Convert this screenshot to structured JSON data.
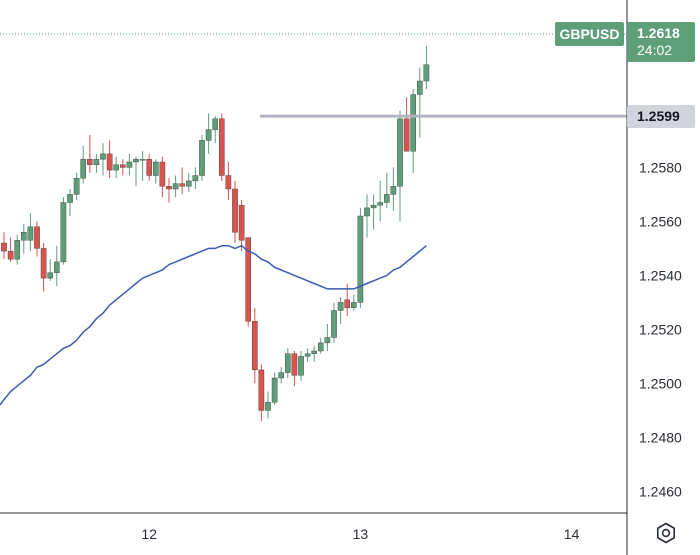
{
  "chart_data": {
    "type": "candlestick",
    "symbol": "GBPUSD",
    "last_price": "1.2618",
    "countdown": "24:02",
    "level_line": {
      "value": 1.2599,
      "label": "1.2599"
    },
    "ylim": [
      1.2452,
      1.2642
    ],
    "y_ticks": [
      "1.2460",
      "1.2480",
      "1.2500",
      "1.2520",
      "1.2540",
      "1.2560",
      "1.2580"
    ],
    "x_ticks": [
      {
        "label": "12",
        "index": 22
      },
      {
        "label": "13",
        "index": 54
      },
      {
        "label": "14",
        "index": 86
      }
    ],
    "colors": {
      "up": "#5e9f79",
      "down": "#d9534f",
      "ma": "#3b5bb5",
      "level": "#b2b5be",
      "last": "#5e9f79"
    },
    "candles": [
      [
        1.2552,
        1.2556,
        1.2546,
        1.2549
      ],
      [
        1.2549,
        1.2554,
        1.2545,
        1.2546
      ],
      [
        1.2546,
        1.2555,
        1.2544,
        1.2553
      ],
      [
        1.2553,
        1.2559,
        1.2548,
        1.2556
      ],
      [
        1.2553,
        1.2563,
        1.2549,
        1.2558
      ],
      [
        1.2558,
        1.256,
        1.2547,
        1.255
      ],
      [
        1.255,
        1.2552,
        1.2534,
        1.2539
      ],
      [
        1.2539,
        1.2546,
        1.2538,
        1.2541
      ],
      [
        1.2541,
        1.2551,
        1.2536,
        1.2545
      ],
      [
        1.2545,
        1.2569,
        1.2544,
        1.2567
      ],
      [
        1.2567,
        1.2572,
        1.2562,
        1.257
      ],
      [
        1.257,
        1.2578,
        1.2568,
        1.2576
      ],
      [
        1.2576,
        1.2588,
        1.2574,
        1.2583
      ],
      [
        1.2583,
        1.2592,
        1.2578,
        1.2581
      ],
      [
        1.2581,
        1.2585,
        1.2578,
        1.2583
      ],
      [
        1.2583,
        1.2589,
        1.2577,
        1.2585
      ],
      [
        1.2585,
        1.259,
        1.2576,
        1.2579
      ],
      [
        1.2579,
        1.2584,
        1.2576,
        1.2581
      ],
      [
        1.2581,
        1.2583,
        1.2577,
        1.258
      ],
      [
        1.258,
        1.2585,
        1.2577,
        1.2582
      ],
      [
        1.2582,
        1.2584,
        1.2573,
        1.2583
      ],
      [
        1.2583,
        1.2586,
        1.2575,
        1.2583
      ],
      [
        1.2583,
        1.2585,
        1.2575,
        1.2577
      ],
      [
        1.2577,
        1.2583,
        1.2574,
        1.2582
      ],
      [
        1.2582,
        1.2584,
        1.2569,
        1.2573
      ],
      [
        1.2573,
        1.2576,
        1.2567,
        1.2572
      ],
      [
        1.2572,
        1.2577,
        1.2569,
        1.2574
      ],
      [
        1.2574,
        1.258,
        1.257,
        1.2573
      ],
      [
        1.2573,
        1.2578,
        1.2571,
        1.2575
      ],
      [
        1.2575,
        1.258,
        1.2572,
        1.2577
      ],
      [
        1.2577,
        1.2592,
        1.2575,
        1.259
      ],
      [
        1.259,
        1.26,
        1.2585,
        1.2594
      ],
      [
        1.2594,
        1.2599,
        1.2589,
        1.2598
      ],
      [
        1.2598,
        1.26,
        1.2575,
        1.2577
      ],
      [
        1.2577,
        1.2582,
        1.2568,
        1.2572
      ],
      [
        1.2572,
        1.2575,
        1.2552,
        1.2556
      ],
      [
        1.2566,
        1.2568,
        1.2549,
        1.2553
      ],
      [
        1.2554,
        1.2554,
        1.2521,
        1.2523
      ],
      [
        1.2523,
        1.2528,
        1.25,
        1.2505
      ],
      [
        1.2505,
        1.2507,
        1.2486,
        1.249
      ],
      [
        1.249,
        1.2497,
        1.2487,
        1.2493
      ],
      [
        1.2493,
        1.2504,
        1.2492,
        1.2502
      ],
      [
        1.2502,
        1.2506,
        1.25,
        1.2504
      ],
      [
        1.2504,
        1.2513,
        1.2502,
        1.2511
      ],
      [
        1.2511,
        1.2512,
        1.2499,
        1.2503
      ],
      [
        1.2503,
        1.2512,
        1.2501,
        1.251
      ],
      [
        1.251,
        1.2513,
        1.2508,
        1.2511
      ],
      [
        1.2511,
        1.2514,
        1.2508,
        1.2512
      ],
      [
        1.2512,
        1.2517,
        1.2511,
        1.2515
      ],
      [
        1.2515,
        1.2522,
        1.2512,
        1.2517
      ],
      [
        1.2517,
        1.253,
        1.2515,
        1.2527
      ],
      [
        1.2527,
        1.2532,
        1.2522,
        1.253
      ],
      [
        1.2531,
        1.2537,
        1.2525,
        1.2528
      ],
      [
        1.2528,
        1.2533,
        1.2527,
        1.253
      ],
      [
        1.253,
        1.2565,
        1.2528,
        1.2562
      ],
      [
        1.2562,
        1.257,
        1.2554,
        1.2565
      ],
      [
        1.2565,
        1.257,
        1.2557,
        1.2566
      ],
      [
        1.2566,
        1.2575,
        1.256,
        1.2567
      ],
      [
        1.2567,
        1.2578,
        1.2565,
        1.257
      ],
      [
        1.257,
        1.258,
        1.2564,
        1.2573
      ],
      [
        1.2573,
        1.2601,
        1.256,
        1.2598
      ],
      [
        1.2598,
        1.2606,
        1.2586,
        1.2586
      ],
      [
        1.2586,
        1.2609,
        1.2578,
        1.2607
      ],
      [
        1.2607,
        1.2617,
        1.2591,
        1.2612
      ],
      [
        1.2612,
        1.2625,
        1.2609,
        1.2618
      ]
    ],
    "ma": [
      1.2494,
      1.2497,
      1.2499,
      1.2501,
      1.2503,
      1.2506,
      1.2507,
      1.2509,
      1.2511,
      1.2513,
      1.2514,
      1.2516,
      1.2519,
      1.2521,
      1.2524,
      1.2526,
      1.2529,
      1.2531,
      1.2533,
      1.2535,
      1.2537,
      1.2539,
      1.254,
      1.2541,
      1.2542,
      1.2544,
      1.2545,
      1.2546,
      1.2547,
      1.2548,
      1.2549,
      1.255,
      1.255,
      1.2551,
      1.2551,
      1.255,
      1.2551,
      1.2549,
      1.2548,
      1.2546,
      1.2545,
      1.2543,
      1.2542,
      1.2541,
      1.254,
      1.2539,
      1.2538,
      1.2537,
      1.2536,
      1.2535,
      1.2535,
      1.2535,
      1.2535,
      1.2535,
      1.2536,
      1.2537,
      1.2538,
      1.2539,
      1.254,
      1.2542,
      1.2543,
      1.2545,
      1.2547,
      1.2549,
      1.2551
    ]
  }
}
